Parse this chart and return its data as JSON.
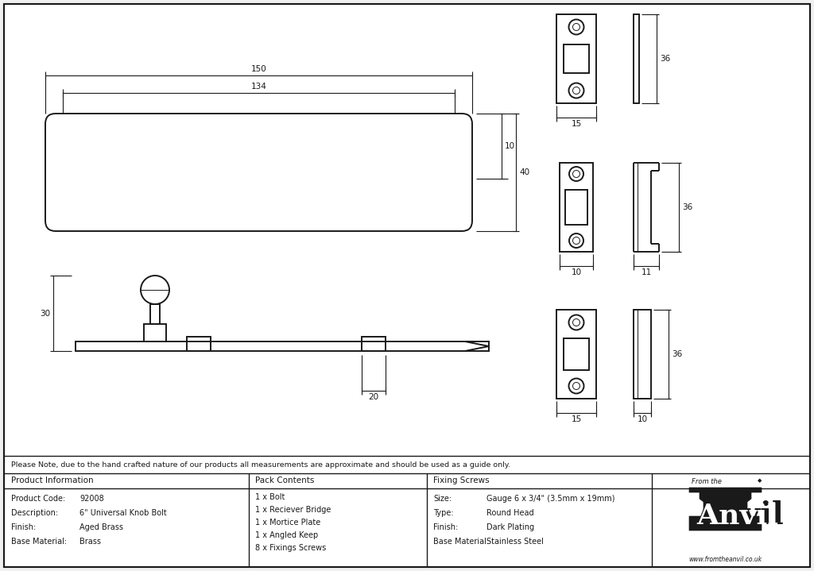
{
  "bg_color": "#f0f0f0",
  "drawing_bg": "#f0f0f0",
  "line_color": "#1a1a1a",
  "note_text": "Please Note, due to the hand crafted nature of our products all measurements are approximate and should be used as a guide only.",
  "product_info_keys": [
    "Product Code:",
    "Description:",
    "Finish:",
    "Base Material:"
  ],
  "product_info_vals": [
    "92008",
    "6\" Universal Knob Bolt",
    "Aged Brass",
    "Brass"
  ],
  "pack_contents": [
    "1 x Bolt",
    "1 x Reciever Bridge",
    "1 x Mortice Plate",
    "1 x Angled Keep",
    "8 x Fixings Screws"
  ],
  "fixing_keys": [
    "Size:",
    "Type:",
    "Finish:",
    "Base Material:"
  ],
  "fixing_vals": [
    "Gauge 6 x 3/4\" (3.5mm x 19mm)",
    "Round Head",
    "Dark Plating",
    "Stainless Steel"
  ]
}
